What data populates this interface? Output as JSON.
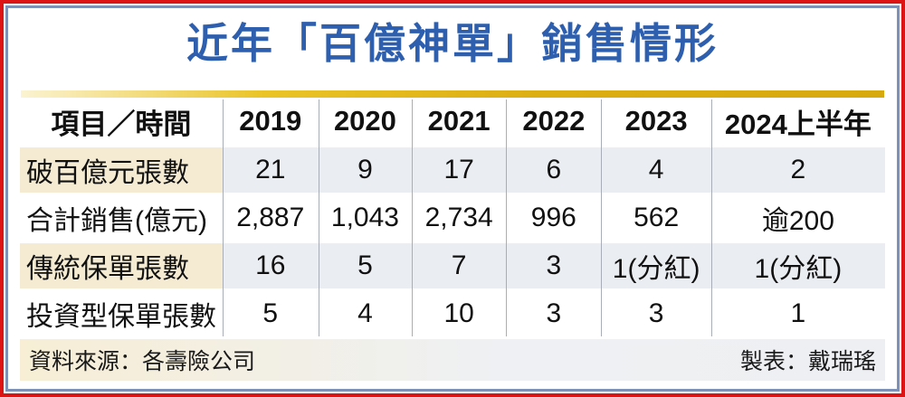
{
  "title": "近年「百億神單」銷售情形",
  "colors": {
    "title_blue": "#2e5fae",
    "outer_border_red": "#dd1414",
    "inner_border_blue": "#7e91b6",
    "gold_divider": "#d7a90e",
    "row_label_cream": "#f4ebd2",
    "row_value_gray": "#eaedf1"
  },
  "table": {
    "header": [
      "項目／時間",
      "2019",
      "2020",
      "2021",
      "2022",
      "2023",
      "2024上半年"
    ],
    "rows": [
      {
        "label": "破百億元張數",
        "values": [
          "21",
          "9",
          "17",
          "6",
          "4",
          "2"
        ]
      },
      {
        "label": "合計銷售(億元)",
        "values": [
          "2,887",
          "1,043",
          "2,734",
          "996",
          "562",
          "逾200"
        ]
      },
      {
        "label": "傳統保單張數",
        "values": [
          "16",
          "5",
          "7",
          "3",
          "1(分紅)",
          "1(分紅)"
        ]
      },
      {
        "label": "投資型保單張數",
        "values": [
          "5",
          "4",
          "10",
          "3",
          "3",
          "1"
        ]
      }
    ]
  },
  "footer": {
    "source": "資料來源：各壽險公司",
    "credit": "製表：戴瑞瑤"
  },
  "chart_data": {
    "type": "table",
    "title": "近年「百億神單」銷售情形",
    "columns": [
      "項目／時間",
      "2019",
      "2020",
      "2021",
      "2022",
      "2023",
      "2024上半年"
    ],
    "rows": [
      [
        "破百億元張數",
        "21",
        "9",
        "17",
        "6",
        "4",
        "2"
      ],
      [
        "合計銷售(億元)",
        "2,887",
        "1,043",
        "2,734",
        "996",
        "562",
        "逾200"
      ],
      [
        "傳統保單張數",
        "16",
        "5",
        "7",
        "3",
        "1(分紅)",
        "1(分紅)"
      ],
      [
        "投資型保單張數",
        "5",
        "4",
        "10",
        "3",
        "3",
        "1"
      ]
    ],
    "source": "資料來源：各壽險公司",
    "credit": "製表：戴瑞瑤"
  }
}
